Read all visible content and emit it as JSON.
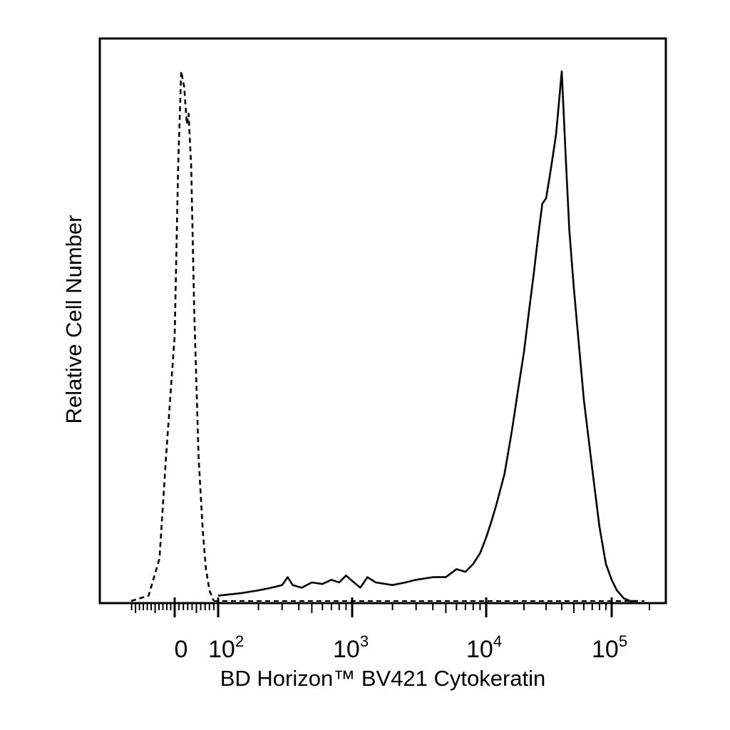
{
  "chart_data": {
    "type": "line",
    "title": "",
    "xlabel": "BD Horizon™ BV421 Cytokeratin",
    "ylabel": "Relative Cell Number",
    "x_scale": "biexponential (linear near 0, log above)",
    "xlim": [
      -200,
      250000
    ],
    "ylim": [
      0,
      100
    ],
    "grid": false,
    "legend": "none",
    "x_tick_labels": [
      {
        "value": 0,
        "base": "0",
        "exp": ""
      },
      {
        "value": 100,
        "base": "10",
        "exp": "2"
      },
      {
        "value": 1000,
        "base": "10",
        "exp": "3"
      },
      {
        "value": 10000,
        "base": "10",
        "exp": "4"
      },
      {
        "value": 100000,
        "base": "10",
        "exp": "5"
      }
    ],
    "series": [
      {
        "style": "dashed",
        "x": [
          -100,
          -60,
          -35,
          -20,
          0,
          8,
          15,
          22,
          28,
          32,
          38,
          45,
          55,
          65,
          72,
          80,
          90
        ],
        "y": [
          0,
          1,
          8,
          27,
          50,
          82,
          100,
          97,
          90,
          92,
          82,
          55,
          27,
          13,
          6,
          2,
          0
        ]
      },
      {
        "style": "solid",
        "x": [
          100,
          150,
          200,
          250,
          300,
          330,
          360,
          420,
          500,
          600,
          700,
          800,
          900,
          1000,
          1150,
          1300,
          1500,
          2000,
          2500,
          3000,
          4000,
          5000,
          6000,
          7000,
          8000,
          9000,
          10000,
          11000,
          12000,
          14000,
          16000,
          18000,
          20000,
          22000,
          24000,
          26000,
          28000,
          30000,
          32000,
          34000,
          36000,
          38000,
          40000,
          43000,
          46000,
          50000,
          55000,
          60000,
          70000,
          80000,
          90000,
          100000,
          110000,
          125000,
          140000,
          160000
        ],
        "y": [
          1,
          1.5,
          2,
          2.5,
          3,
          4.5,
          3,
          2.5,
          3.5,
          3.2,
          4,
          3.5,
          4.8,
          3.8,
          2.5,
          4.5,
          3.5,
          3,
          3.5,
          4,
          4.5,
          4.5,
          6,
          5.5,
          7,
          9,
          12,
          15,
          18,
          24,
          32,
          40,
          47,
          55,
          62,
          69,
          75,
          76,
          80,
          84,
          88,
          94,
          100,
          84,
          70,
          59,
          48,
          38,
          25,
          14,
          7,
          4,
          2,
          0.5,
          0,
          0
        ]
      }
    ]
  }
}
